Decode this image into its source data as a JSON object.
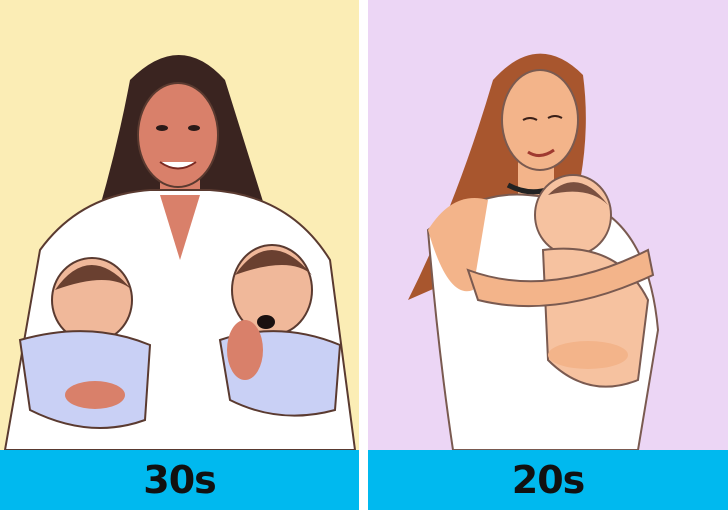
{
  "colors": {
    "left_background": "#fbedb5",
    "right_background": "#ecd6f5",
    "label_bar": "#00b9ef",
    "divider": "#ffffff"
  },
  "panels": [
    {
      "label": "30s",
      "illustration": "woman-with-dark-hair-holding-twin-babies"
    },
    {
      "label": "20s",
      "illustration": "young-woman-with-auburn-hair-hugging-baby"
    }
  ]
}
